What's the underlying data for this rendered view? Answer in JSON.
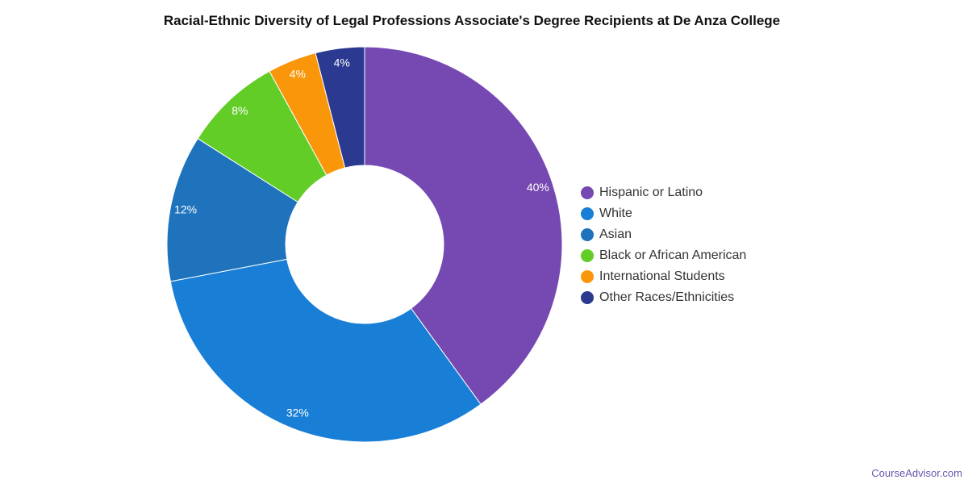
{
  "chart_data": {
    "type": "pie",
    "variant": "donut",
    "title": "Racial-Ethnic Diversity of Legal Professions Associate's Degree Recipients at De Anza College",
    "legend_position": "right",
    "slices": [
      {
        "name": "Hispanic or Latino",
        "value": 40,
        "label": "40%",
        "color": "#7549b1"
      },
      {
        "name": "White",
        "value": 32,
        "label": "32%",
        "color": "#197ed6"
      },
      {
        "name": "Asian",
        "value": 12,
        "label": "12%",
        "color": "#1e73bc"
      },
      {
        "name": "Black or African American",
        "value": 8,
        "label": "8%",
        "color": "#63cd27"
      },
      {
        "name": "International Students",
        "value": 4,
        "label": "4%",
        "color": "#fa960a"
      },
      {
        "name": "Other Races/Ethnicities",
        "value": 4,
        "label": "4%",
        "color": "#2b3a90"
      }
    ]
  },
  "watermark": "CourseAdvisor.com"
}
